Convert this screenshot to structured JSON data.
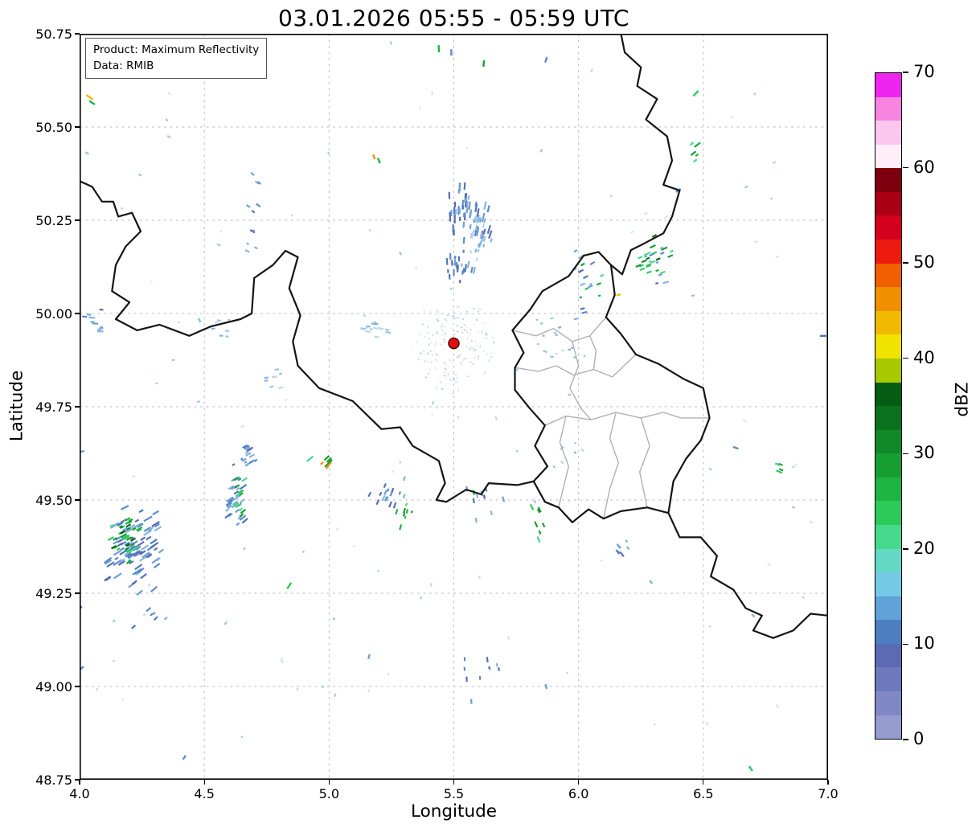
{
  "chart_data": {
    "type": "heatmap",
    "title": "03.01.2026 05:55 - 05:59 UTC",
    "xlabel": "Longitude",
    "ylabel": "Latitude",
    "xlim": [
      4.0,
      7.0
    ],
    "ylim": [
      48.75,
      50.75
    ],
    "xticks": [
      4.0,
      4.5,
      5.0,
      5.5,
      6.0,
      6.5,
      7.0
    ],
    "xtick_labels": [
      "4.0",
      "4.5",
      "5.0",
      "5.5",
      "6.0",
      "6.5",
      "7.0"
    ],
    "yticks": [
      48.75,
      49.0,
      49.25,
      49.5,
      49.75,
      50.0,
      50.25,
      50.5,
      50.75
    ],
    "ytick_labels": [
      "48.75",
      "49.00",
      "49.25",
      "49.50",
      "49.75",
      "50.00",
      "50.25",
      "50.50",
      "50.75"
    ],
    "grid": {
      "on": true,
      "style": "dashed",
      "color": "#bdbdbd"
    },
    "annotations": {
      "product": "Product: Maximum Reflectivity",
      "data_source": "Data: RMIB"
    },
    "colorbar": {
      "label": "dBZ",
      "min": 0,
      "max": 70,
      "ticks": [
        0,
        10,
        20,
        30,
        40,
        50,
        60,
        70
      ],
      "segment_dbz": 2.5,
      "colors": [
        "#959cce",
        "#8089c6",
        "#6d79bd",
        "#5c6ab3",
        "#4d7ec2",
        "#5fa3d8",
        "#74c9e6",
        "#63d9c5",
        "#45d98c",
        "#2bca59",
        "#1eb441",
        "#169e33",
        "#108827",
        "#0a721c",
        "#045d12",
        "#a8c800",
        "#f0e300",
        "#f0ba00",
        "#f08f00",
        "#f05f00",
        "#ec1a0f",
        "#d4001f",
        "#a90016",
        "#7c000e",
        "#fdeef8",
        "#fcc7ee",
        "#f884e2",
        "#ee25ee"
      ]
    },
    "radar_site": {
      "lon": 5.5,
      "lat": 49.92,
      "color": "#dd1111",
      "edge": "#5a0000"
    },
    "palettes": {
      "blue": [
        "#4c78be",
        "#5b8cc8",
        "#6f9fd4",
        "#85b4de",
        "#5c6ab3"
      ],
      "paleblue": [
        "#9cc4e4",
        "#b9d6ee",
        "#85b4de"
      ],
      "green": [
        "#2bca59",
        "#1eb441",
        "#169e33",
        "#45d98c"
      ],
      "dgreen": [
        "#108827",
        "#0a721c",
        "#045d12"
      ],
      "cyan": [
        "#74c9e6",
        "#63d9c5"
      ],
      "noise": [
        "#c3d5ec",
        "#aac6e6",
        "#d8e4f4",
        "#9cc4e4"
      ],
      "clutter": [
        "#d0dcf0",
        "#bccee8",
        "#e6edf8"
      ]
    },
    "borders": [
      [
        [
          4.0,
          50.355
        ],
        [
          4.05,
          50.34
        ],
        [
          4.09,
          50.3
        ],
        [
          4.135,
          50.3
        ],
        [
          4.155,
          50.26
        ],
        [
          4.21,
          50.27
        ],
        [
          4.245,
          50.22
        ],
        [
          4.185,
          50.18
        ],
        [
          4.145,
          50.13
        ],
        [
          4.13,
          50.06
        ],
        [
          4.2,
          50.03
        ],
        [
          4.145,
          49.985
        ],
        [
          4.23,
          49.955
        ],
        [
          4.32,
          49.97
        ],
        [
          4.44,
          49.94
        ],
        [
          4.525,
          49.965
        ],
        [
          4.645,
          49.985
        ],
        [
          4.69,
          50.0
        ],
        [
          4.7,
          50.095
        ],
        [
          4.775,
          50.13
        ],
        [
          4.825,
          50.168
        ],
        [
          4.875,
          50.151
        ],
        [
          4.84,
          50.068
        ],
        [
          4.885,
          49.995
        ],
        [
          4.855,
          49.925
        ],
        [
          4.875,
          49.86
        ],
        [
          4.96,
          49.8
        ],
        [
          5.095,
          49.765
        ],
        [
          5.21,
          49.69
        ],
        [
          5.285,
          49.695
        ],
        [
          5.335,
          49.645
        ],
        [
          5.44,
          49.605
        ],
        [
          5.465,
          49.545
        ],
        [
          5.43,
          49.5
        ],
        [
          5.47,
          49.495
        ],
        [
          5.55,
          49.528
        ],
        [
          5.61,
          49.515
        ],
        [
          5.64,
          49.545
        ],
        [
          5.755,
          49.54
        ],
        [
          5.82,
          49.55
        ]
      ],
      [
        [
          6.17,
          50.75
        ],
        [
          6.185,
          50.7
        ],
        [
          6.25,
          50.66
        ],
        [
          6.235,
          50.61
        ],
        [
          6.315,
          50.575
        ],
        [
          6.27,
          50.52
        ],
        [
          6.355,
          50.475
        ],
        [
          6.375,
          50.41
        ],
        [
          6.34,
          50.345
        ],
        [
          6.405,
          50.33
        ],
        [
          6.375,
          50.26
        ],
        [
          6.34,
          50.215
        ],
        [
          6.255,
          50.185
        ],
        [
          6.21,
          50.17
        ],
        [
          6.175,
          50.105
        ],
        [
          6.13,
          50.13
        ]
      ],
      [
        [
          5.82,
          49.55
        ],
        [
          5.875,
          49.59
        ],
        [
          5.825,
          49.645
        ],
        [
          5.865,
          49.7
        ],
        [
          5.805,
          49.745
        ],
        [
          5.745,
          49.795
        ],
        [
          5.745,
          49.855
        ],
        [
          5.78,
          49.895
        ],
        [
          5.735,
          49.955
        ],
        [
          5.805,
          50.01
        ],
        [
          5.855,
          50.06
        ],
        [
          5.96,
          50.1
        ],
        [
          6.02,
          50.155
        ],
        [
          6.08,
          50.165
        ],
        [
          6.13,
          50.13
        ]
      ],
      [
        [
          6.13,
          50.13
        ],
        [
          6.145,
          50.05
        ],
        [
          6.11,
          49.99
        ],
        [
          6.17,
          49.945
        ],
        [
          6.23,
          49.89
        ],
        [
          6.32,
          49.865
        ],
        [
          6.42,
          49.825
        ],
        [
          6.5,
          49.8
        ],
        [
          6.525,
          49.72
        ],
        [
          6.49,
          49.66
        ],
        [
          6.43,
          49.61
        ],
        [
          6.38,
          49.55
        ],
        [
          6.36,
          49.465
        ]
      ],
      [
        [
          6.36,
          49.465
        ],
        [
          6.275,
          49.48
        ],
        [
          6.17,
          49.47
        ],
        [
          6.1,
          49.45
        ],
        [
          6.04,
          49.475
        ],
        [
          5.975,
          49.44
        ],
        [
          5.92,
          49.48
        ],
        [
          5.865,
          49.495
        ],
        [
          5.82,
          49.55
        ]
      ],
      [
        [
          6.36,
          49.465
        ],
        [
          6.405,
          49.4
        ],
        [
          6.49,
          49.4
        ],
        [
          6.555,
          49.35
        ],
        [
          6.53,
          49.295
        ],
        [
          6.62,
          49.26
        ],
        [
          6.67,
          49.21
        ],
        [
          6.735,
          49.19
        ],
        [
          6.7,
          49.15
        ],
        [
          6.78,
          49.13
        ],
        [
          6.86,
          49.15
        ],
        [
          6.93,
          49.195
        ],
        [
          7.0,
          49.19
        ]
      ]
    ],
    "admin_lines": [
      [
        [
          5.735,
          49.955
        ],
        [
          5.83,
          49.94
        ],
        [
          5.9,
          49.96
        ],
        [
          5.975,
          49.925
        ],
        [
          6.045,
          49.94
        ],
        [
          6.11,
          49.99
        ]
      ],
      [
        [
          5.745,
          49.855
        ],
        [
          5.84,
          49.845
        ],
        [
          5.91,
          49.86
        ],
        [
          5.98,
          49.835
        ],
        [
          6.06,
          49.85
        ],
        [
          6.135,
          49.83
        ],
        [
          6.23,
          49.89
        ]
      ],
      [
        [
          5.865,
          49.7
        ],
        [
          5.95,
          49.725
        ],
        [
          6.05,
          49.715
        ],
        [
          6.15,
          49.735
        ],
        [
          6.25,
          49.72
        ],
        [
          6.34,
          49.735
        ],
        [
          6.41,
          49.72
        ],
        [
          6.525,
          49.72
        ]
      ],
      [
        [
          5.975,
          49.925
        ],
        [
          6.0,
          49.86
        ],
        [
          5.965,
          49.8
        ],
        [
          6.01,
          49.745
        ],
        [
          6.05,
          49.715
        ]
      ],
      [
        [
          6.15,
          49.735
        ],
        [
          6.125,
          49.665
        ],
        [
          6.16,
          49.6
        ],
        [
          6.125,
          49.53
        ],
        [
          6.1,
          49.45
        ]
      ],
      [
        [
          5.95,
          49.725
        ],
        [
          5.925,
          49.655
        ],
        [
          5.96,
          49.59
        ],
        [
          5.92,
          49.48
        ]
      ],
      [
        [
          6.25,
          49.72
        ],
        [
          6.285,
          49.645
        ],
        [
          6.245,
          49.575
        ],
        [
          6.275,
          49.48
        ]
      ],
      [
        [
          6.045,
          49.94
        ],
        [
          6.07,
          49.9
        ],
        [
          6.06,
          49.85
        ]
      ]
    ],
    "echo_clusters": [
      {
        "lon": 5.56,
        "lat": 50.27,
        "n": 55,
        "dlon": 0.1,
        "dlat": 0.1,
        "pal": "blue",
        "len": [
          4,
          12
        ]
      },
      {
        "lon": 5.6,
        "lat": 50.2,
        "n": 20,
        "dlon": 0.06,
        "dlat": 0.06,
        "pal": "paleblue",
        "len": [
          3,
          8
        ]
      },
      {
        "lon": 5.52,
        "lat": 50.12,
        "n": 22,
        "dlon": 0.08,
        "dlat": 0.05,
        "pal": "blue",
        "len": [
          3,
          9
        ]
      },
      {
        "lon": 5.17,
        "lat": 49.97,
        "n": 16,
        "dlon": 0.09,
        "dlat": 0.04,
        "pal": "paleblue",
        "len": [
          3,
          7
        ]
      },
      {
        "lon": 4.21,
        "lat": 49.37,
        "n": 95,
        "dlon": 0.13,
        "dlat": 0.12,
        "pal": "blue",
        "len": [
          4,
          12
        ]
      },
      {
        "lon": 4.19,
        "lat": 49.4,
        "n": 30,
        "dlon": 0.08,
        "dlat": 0.09,
        "pal": "green",
        "len": [
          4,
          9
        ]
      },
      {
        "lon": 4.17,
        "lat": 49.42,
        "n": 8,
        "dlon": 0.05,
        "dlat": 0.06,
        "pal": "dgreen",
        "len": [
          4,
          8
        ]
      },
      {
        "lon": 4.63,
        "lat": 49.5,
        "n": 28,
        "dlon": 0.05,
        "dlat": 0.08,
        "pal": "blue",
        "len": [
          4,
          10
        ]
      },
      {
        "lon": 4.64,
        "lat": 49.51,
        "n": 14,
        "dlon": 0.03,
        "dlat": 0.06,
        "pal": "green",
        "len": [
          4,
          8
        ]
      },
      {
        "lon": 4.67,
        "lat": 49.62,
        "n": 18,
        "dlon": 0.06,
        "dlat": 0.06,
        "pal": "blue",
        "len": [
          3,
          8
        ]
      },
      {
        "lon": 4.98,
        "lat": 49.6,
        "n": 6,
        "dlon": 0.06,
        "dlat": 0.02,
        "pal": "green",
        "len": [
          5,
          10
        ]
      },
      {
        "lon": 5.0,
        "lat": 49.59,
        "n": 3,
        "dlon": 0.04,
        "dlat": 0.015,
        "pal": [
          "#f2bb00",
          "#f28f00"
        ],
        "len": [
          4,
          6
        ]
      },
      {
        "lon": 5.22,
        "lat": 49.52,
        "n": 16,
        "dlon": 0.1,
        "dlat": 0.06,
        "pal": "blue",
        "len": [
          3,
          8
        ]
      },
      {
        "lon": 5.3,
        "lat": 49.46,
        "n": 8,
        "dlon": 0.05,
        "dlat": 0.04,
        "pal": "green",
        "len": [
          3,
          7
        ]
      },
      {
        "lon": 6.3,
        "lat": 50.15,
        "n": 16,
        "dlon": 0.08,
        "dlat": 0.08,
        "pal": "green",
        "len": [
          4,
          9
        ]
      },
      {
        "lon": 6.32,
        "lat": 50.13,
        "n": 10,
        "dlon": 0.07,
        "dlat": 0.07,
        "pal": "blue",
        "len": [
          3,
          8
        ]
      },
      {
        "lon": 6.28,
        "lat": 50.17,
        "n": 4,
        "dlon": 0.05,
        "dlat": 0.05,
        "pal": "dgreen",
        "len": [
          4,
          7
        ]
      },
      {
        "lon": 6.02,
        "lat": 50.08,
        "n": 12,
        "dlon": 0.09,
        "dlat": 0.1,
        "pal": "blue",
        "len": [
          3,
          7
        ]
      },
      {
        "lon": 6.05,
        "lat": 50.1,
        "n": 6,
        "dlon": 0.07,
        "dlat": 0.08,
        "pal": "green",
        "len": [
          3,
          6
        ]
      },
      {
        "lon": 5.92,
        "lat": 49.93,
        "n": 18,
        "dlon": 0.13,
        "dlat": 0.12,
        "pal": "paleblue",
        "len": [
          2,
          6
        ]
      },
      {
        "lon": 5.85,
        "lat": 49.44,
        "n": 7,
        "dlon": 0.04,
        "dlat": 0.05,
        "pal": "green",
        "len": [
          4,
          8
        ]
      },
      {
        "lon": 5.62,
        "lat": 49.5,
        "n": 10,
        "dlon": 0.09,
        "dlat": 0.06,
        "pal": "blue",
        "len": [
          3,
          7
        ]
      },
      {
        "lon": 6.17,
        "lat": 49.37,
        "n": 7,
        "dlon": 0.05,
        "dlat": 0.03,
        "pal": "blue",
        "len": [
          3,
          8
        ]
      },
      {
        "lon": 4.7,
        "lat": 50.32,
        "n": 7,
        "dlon": 0.04,
        "dlat": 0.07,
        "pal": "blue",
        "len": [
          3,
          8
        ]
      },
      {
        "lon": 4.68,
        "lat": 50.2,
        "n": 5,
        "dlon": 0.03,
        "dlat": 0.04,
        "pal": "blue",
        "len": [
          3,
          7
        ]
      },
      {
        "lon": 5.62,
        "lat": 49.06,
        "n": 9,
        "dlon": 0.11,
        "dlat": 0.05,
        "pal": "blue",
        "len": [
          3,
          7
        ]
      },
      {
        "lon": 4.28,
        "lat": 49.19,
        "n": 7,
        "dlon": 0.07,
        "dlat": 0.05,
        "pal": "blue",
        "len": [
          3,
          7
        ]
      },
      {
        "lon": 6.47,
        "lat": 50.43,
        "n": 6,
        "dlon": 0.03,
        "dlat": 0.05,
        "pal": "green",
        "len": [
          4,
          8
        ]
      },
      {
        "lon": 6.8,
        "lat": 49.58,
        "n": 5,
        "dlon": 0.02,
        "dlat": 0.04,
        "pal": "green",
        "len": [
          4,
          8
        ]
      },
      {
        "lon": 4.05,
        "lat": 49.98,
        "n": 10,
        "dlon": 0.06,
        "dlat": 0.04,
        "pal": "blue",
        "len": [
          3,
          8
        ]
      },
      {
        "lon": 4.55,
        "lat": 49.97,
        "n": 8,
        "dlon": 0.12,
        "dlat": 0.04,
        "pal": "paleblue",
        "len": [
          2,
          6
        ]
      },
      {
        "lon": 4.78,
        "lat": 49.84,
        "n": 8,
        "dlon": 0.05,
        "dlat": 0.05,
        "pal": "paleblue",
        "len": [
          3,
          6
        ]
      },
      {
        "lon": 5.45,
        "lat": 49.78,
        "n": 10,
        "dlon": 0.1,
        "dlat": 0.07,
        "pal": "clutter",
        "len": [
          2,
          5
        ]
      },
      {
        "lon": 5.95,
        "lat": 49.62,
        "n": 6,
        "dlon": 0.08,
        "dlat": 0.05,
        "pal": "paleblue",
        "len": [
          2,
          5
        ]
      },
      {
        "lon": 5.5,
        "lat": 49.8,
        "n": 90,
        "dlon": 1.45,
        "dlat": 0.95,
        "pal": "noise",
        "len": [
          2,
          5
        ],
        "uniform": true
      },
      {
        "type": "ring",
        "lon": 5.5,
        "lat": 49.92,
        "n": 150,
        "r0": 10,
        "r1": 55,
        "pal": "clutter",
        "len": [
          1.5,
          3.5
        ]
      }
    ],
    "echo_singles": [
      [
        4.04,
        50.58,
        "#f2bb00",
        10
      ],
      [
        4.05,
        50.565,
        "#1eb441",
        8
      ],
      [
        5.44,
        50.71,
        "#1eb441",
        9
      ],
      [
        5.49,
        50.7,
        "#5b8cc8",
        8
      ],
      [
        5.62,
        50.67,
        "#169e33",
        8
      ],
      [
        5.87,
        50.68,
        "#5b8cc8",
        7
      ],
      [
        6.47,
        50.59,
        "#2bca59",
        9
      ],
      [
        5.18,
        50.42,
        "#f28f00",
        6
      ],
      [
        5.2,
        50.41,
        "#1eb441",
        7
      ],
      [
        4.45,
        50.65,
        "#9cc4e4",
        6
      ],
      [
        6.4,
        50.33,
        "#5b8cc8",
        7
      ],
      [
        6.16,
        50.05,
        "#f2bb00",
        5
      ],
      [
        6.63,
        49.64,
        "#5b8cc8",
        7
      ],
      [
        6.98,
        49.94,
        "#4c78be",
        8
      ],
      [
        4.84,
        49.27,
        "#2bca59",
        9
      ],
      [
        5.58,
        49.52,
        "#1eb441",
        6
      ],
      [
        6.69,
        48.78,
        "#2bca59",
        7
      ],
      [
        4.42,
        48.81,
        "#5b8cc8",
        6
      ],
      [
        5.16,
        49.08,
        "#6f9fd4",
        6
      ],
      [
        5.87,
        49.0,
        "#6f9fd4",
        6
      ],
      [
        4.0,
        49.21,
        "#4c78be",
        7
      ],
      [
        4.01,
        49.05,
        "#5b8cc8",
        5
      ],
      [
        6.7,
        49.19,
        "#85b4de",
        5
      ],
      [
        6.29,
        49.28,
        "#85b4de",
        5
      ],
      [
        4.01,
        49.63,
        "#6f9fd4",
        6
      ],
      [
        4.03,
        50.43,
        "#9cc4e4",
        5
      ],
      [
        5.57,
        48.96,
        "#6f9fd4",
        6
      ]
    ]
  }
}
